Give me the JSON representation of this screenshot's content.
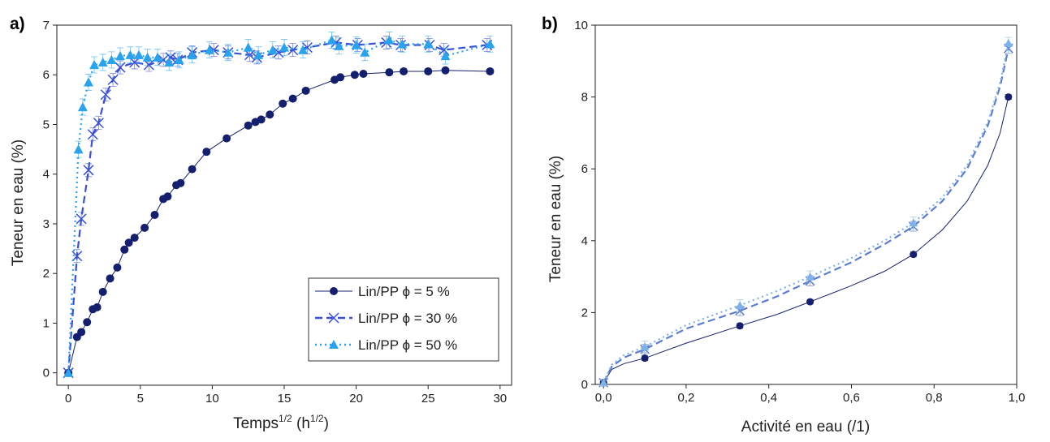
{
  "chart_data": [
    {
      "type": "line",
      "panel_label": "a)",
      "xlabel_main": "Temps",
      "xlabel_sup1": "1/2",
      "xlabel_mid": " (h",
      "xlabel_sup2": "1/2",
      "xlabel_end": ")",
      "ylabel": "Teneur en eau (%)",
      "xlim": [
        -0.8,
        30.8
      ],
      "ylim": [
        -0.25,
        7.0
      ],
      "xticks": [
        0,
        5,
        10,
        15,
        20,
        25,
        30
      ],
      "xtick_labels": [
        "0",
        "5",
        "10",
        "15",
        "20",
        "25",
        "30"
      ],
      "yticks": [
        0,
        1,
        2,
        3,
        4,
        5,
        6,
        7
      ],
      "ytick_labels": [
        "0",
        "1",
        "2",
        "3",
        "4",
        "5",
        "6",
        "7"
      ],
      "grid": false,
      "legend_position": "bottom-right",
      "series": [
        {
          "name": "Lin/PP ϕ = 5 %",
          "marker": "circle",
          "line": "solid",
          "color": "#14206e",
          "x": [
            0,
            0.6,
            0.9,
            1.3,
            1.7,
            2.0,
            2.4,
            2.9,
            3.4,
            3.9,
            4.2,
            4.6,
            5.3,
            6.0,
            6.6,
            6.9,
            7.5,
            7.8,
            8.6,
            9.6,
            11.0,
            12.5,
            13.0,
            13.4,
            14.0,
            14.9,
            15.6,
            16.5,
            18.5,
            18.9,
            19.9,
            20.5,
            22.3,
            23.3,
            25.0,
            26.2,
            29.3
          ],
          "y": [
            0,
            0.72,
            0.82,
            1.02,
            1.28,
            1.32,
            1.63,
            1.9,
            2.12,
            2.48,
            2.62,
            2.72,
            2.92,
            3.18,
            3.5,
            3.55,
            3.78,
            3.82,
            4.1,
            4.45,
            4.72,
            4.98,
            5.05,
            5.1,
            5.2,
            5.42,
            5.52,
            5.68,
            5.9,
            5.95,
            6.0,
            6.02,
            6.05,
            6.07,
            6.07,
            6.09,
            6.07
          ]
        },
        {
          "name": "Lin/PP ϕ = 30 %",
          "marker": "cross",
          "line": "dashed",
          "color": "#3a4fd6",
          "x": [
            0,
            0.6,
            0.9,
            1.4,
            1.7,
            2.1,
            2.6,
            3.1,
            3.6,
            4.6,
            5.6,
            6.6,
            7.1,
            7.6,
            8.6,
            10.1,
            11.1,
            12.6,
            13.1,
            14.6,
            15.6,
            16.6,
            18.6,
            20.1,
            22.1,
            23.1,
            25.1,
            26.1,
            29.1
          ],
          "y": [
            0,
            2.35,
            3.1,
            4.08,
            4.8,
            5.03,
            5.6,
            5.9,
            6.15,
            6.25,
            6.2,
            6.3,
            6.35,
            6.3,
            6.45,
            6.5,
            6.45,
            6.4,
            6.35,
            6.45,
            6.5,
            6.55,
            6.65,
            6.6,
            6.65,
            6.6,
            6.6,
            6.5,
            6.6
          ]
        },
        {
          "name": "Lin/PP ϕ = 50 %",
          "marker": "triangle",
          "line": "dotted",
          "color": "#2aa3ee",
          "x": [
            0,
            0.7,
            1.0,
            1.4,
            1.8,
            2.4,
            3.0,
            3.6,
            4.3,
            4.9,
            5.5,
            6.2,
            7.0,
            7.7,
            8.6,
            9.8,
            11.1,
            12.5,
            13.2,
            14.2,
            15.0,
            16.3,
            18.3,
            18.8,
            20.0,
            20.6,
            22.3,
            23.2,
            25.0,
            26.2,
            29.3
          ],
          "y": [
            0,
            4.5,
            5.35,
            5.85,
            6.2,
            6.25,
            6.3,
            6.38,
            6.4,
            6.4,
            6.35,
            6.35,
            6.25,
            6.3,
            6.4,
            6.5,
            6.45,
            6.55,
            6.4,
            6.5,
            6.55,
            6.5,
            6.7,
            6.58,
            6.6,
            6.45,
            6.7,
            6.62,
            6.62,
            6.38,
            6.62
          ]
        }
      ]
    },
    {
      "type": "line",
      "panel_label": "b)",
      "xlabel": "Activité en eau (/1)",
      "ylabel": "Teneur en eau (%)",
      "xlim": [
        -0.02,
        1.0
      ],
      "ylim": [
        0,
        10
      ],
      "xticks": [
        0,
        0.2,
        0.4,
        0.6,
        0.8,
        1.0
      ],
      "xtick_labels": [
        "0,0",
        "0,2",
        "0,4",
        "0,6",
        "0,8",
        "1,0"
      ],
      "yticks": [
        0,
        2,
        4,
        6,
        8,
        10
      ],
      "ytick_labels": [
        "0",
        "2",
        "4",
        "6",
        "8",
        "10"
      ],
      "grid": false,
      "series": [
        {
          "marker": "circle",
          "line": "solid",
          "color": "#14206e",
          "x": [
            0,
            0.1,
            0.33,
            0.5,
            0.75,
            0.98
          ],
          "y": [
            0.05,
            0.73,
            1.63,
            2.3,
            3.62,
            8.0
          ],
          "fit": [
            [
              0,
              0.05
            ],
            [
              0.02,
              0.42
            ],
            [
              0.05,
              0.58
            ],
            [
              0.1,
              0.73
            ],
            [
              0.2,
              1.15
            ],
            [
              0.33,
              1.63
            ],
            [
              0.42,
              1.95
            ],
            [
              0.5,
              2.3
            ],
            [
              0.6,
              2.75
            ],
            [
              0.68,
              3.15
            ],
            [
              0.75,
              3.62
            ],
            [
              0.82,
              4.3
            ],
            [
              0.88,
              5.1
            ],
            [
              0.93,
              6.1
            ],
            [
              0.96,
              7.0
            ],
            [
              0.98,
              8.0
            ]
          ]
        },
        {
          "marker": "cross",
          "line": "dashed",
          "color": "#5b7cd0",
          "x": [
            0,
            0.1,
            0.33,
            0.5,
            0.75,
            0.98
          ],
          "y": [
            0.05,
            0.98,
            2.05,
            2.88,
            4.4,
            9.35
          ],
          "fit": [
            [
              0,
              0.05
            ],
            [
              0.02,
              0.5
            ],
            [
              0.05,
              0.75
            ],
            [
              0.1,
              0.98
            ],
            [
              0.2,
              1.55
            ],
            [
              0.33,
              2.05
            ],
            [
              0.42,
              2.45
            ],
            [
              0.5,
              2.88
            ],
            [
              0.6,
              3.4
            ],
            [
              0.68,
              3.9
            ],
            [
              0.75,
              4.4
            ],
            [
              0.82,
              5.1
            ],
            [
              0.88,
              6.0
            ],
            [
              0.93,
              7.2
            ],
            [
              0.96,
              8.3
            ],
            [
              0.98,
              9.35
            ]
          ]
        },
        {
          "marker": "triangle",
          "line": "dotted",
          "color": "#7fb2e8",
          "x": [
            0,
            0.1,
            0.33,
            0.5,
            0.75,
            0.98
          ],
          "y": [
            0.05,
            1.05,
            2.2,
            3.0,
            4.5,
            9.5
          ],
          "fit": [
            [
              0,
              0.05
            ],
            [
              0.02,
              0.55
            ],
            [
              0.05,
              0.82
            ],
            [
              0.1,
              1.05
            ],
            [
              0.2,
              1.65
            ],
            [
              0.33,
              2.2
            ],
            [
              0.42,
              2.6
            ],
            [
              0.5,
              3.0
            ],
            [
              0.6,
              3.52
            ],
            [
              0.68,
              4.0
            ],
            [
              0.75,
              4.5
            ],
            [
              0.82,
              5.2
            ],
            [
              0.88,
              6.1
            ],
            [
              0.93,
              7.3
            ],
            [
              0.96,
              8.4
            ],
            [
              0.98,
              9.5
            ]
          ]
        }
      ]
    }
  ]
}
